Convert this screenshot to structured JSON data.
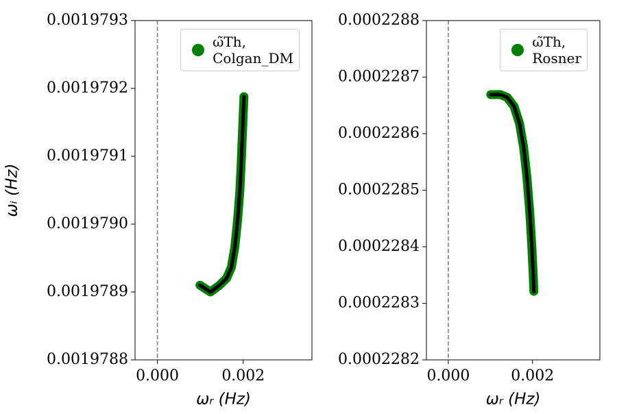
{
  "chart_data": [
    {
      "type": "line",
      "xlabel": "ωᵣ (Hz)",
      "ylabel": "ωᵢ (Hz)",
      "xlim": [
        -0.00052,
        0.0036
      ],
      "ylim": [
        0.0019788,
        0.0019793
      ],
      "xticks": [
        {
          "value": 0,
          "label": "0.000"
        },
        {
          "value": 0.002,
          "label": "0.002"
        }
      ],
      "yticks": [
        0.0019788,
        0.0019789,
        {
          "value": 0.001979,
          "label": "0.0019790"
        },
        0.0019791,
        0.0019792,
        0.0019793
      ],
      "axvline": 0,
      "legend": "upper right",
      "line_color": "#000000",
      "x": [
        0.000992,
        0.001236,
        0.001447,
        0.00161,
        0.001724,
        0.001805,
        0.00187,
        0.001919,
        0.001951,
        0.001984,
        0.002016
      ],
      "series": [
        {
          "name": "ω̃Th,\nColgan_DM",
          "color": "#008000",
          "values": [
            0.00197891,
            0.0019789,
            0.00197891,
            0.00197892,
            0.0019789364,
            0.0019789667,
            0.0019790071,
            0.0019790475,
            0.0019790879,
            0.0019791384,
            0.0019791879
          ]
        }
      ]
    },
    {
      "type": "line",
      "xlabel": "ωᵣ (Hz)",
      "xlim": [
        -0.00052,
        0.0036
      ],
      "ylim": [
        0.0002282,
        0.0002288
      ],
      "xticks": [
        {
          "value": 0,
          "label": "0.000"
        },
        {
          "value": 0.002,
          "label": "0.002"
        }
      ],
      "yticks": [
        0.0002282,
        0.0002283,
        0.0002284,
        0.0002285,
        0.0002286,
        0.0002287,
        0.0002288
      ],
      "axvline": 0,
      "legend": "upper right",
      "line_color": "#000000",
      "x": [
        0.001008,
        0.001236,
        0.001398,
        0.001561,
        0.001691,
        0.001789,
        0.00187,
        0.001935,
        0.001984,
        0.002016,
        0.002033
      ],
      "series": [
        {
          "name": "ω̃Th,\nRosner",
          "color": "#008000",
          "values": [
            0.0002286691,
            0.0002286691,
            0.0002286642,
            0.0002286485,
            0.0002286182,
            0.0002285758,
            0.0002285212,
            0.0002284606,
            0.0002284,
            0.0002283515,
            0.0002283212
          ]
        }
      ]
    }
  ]
}
